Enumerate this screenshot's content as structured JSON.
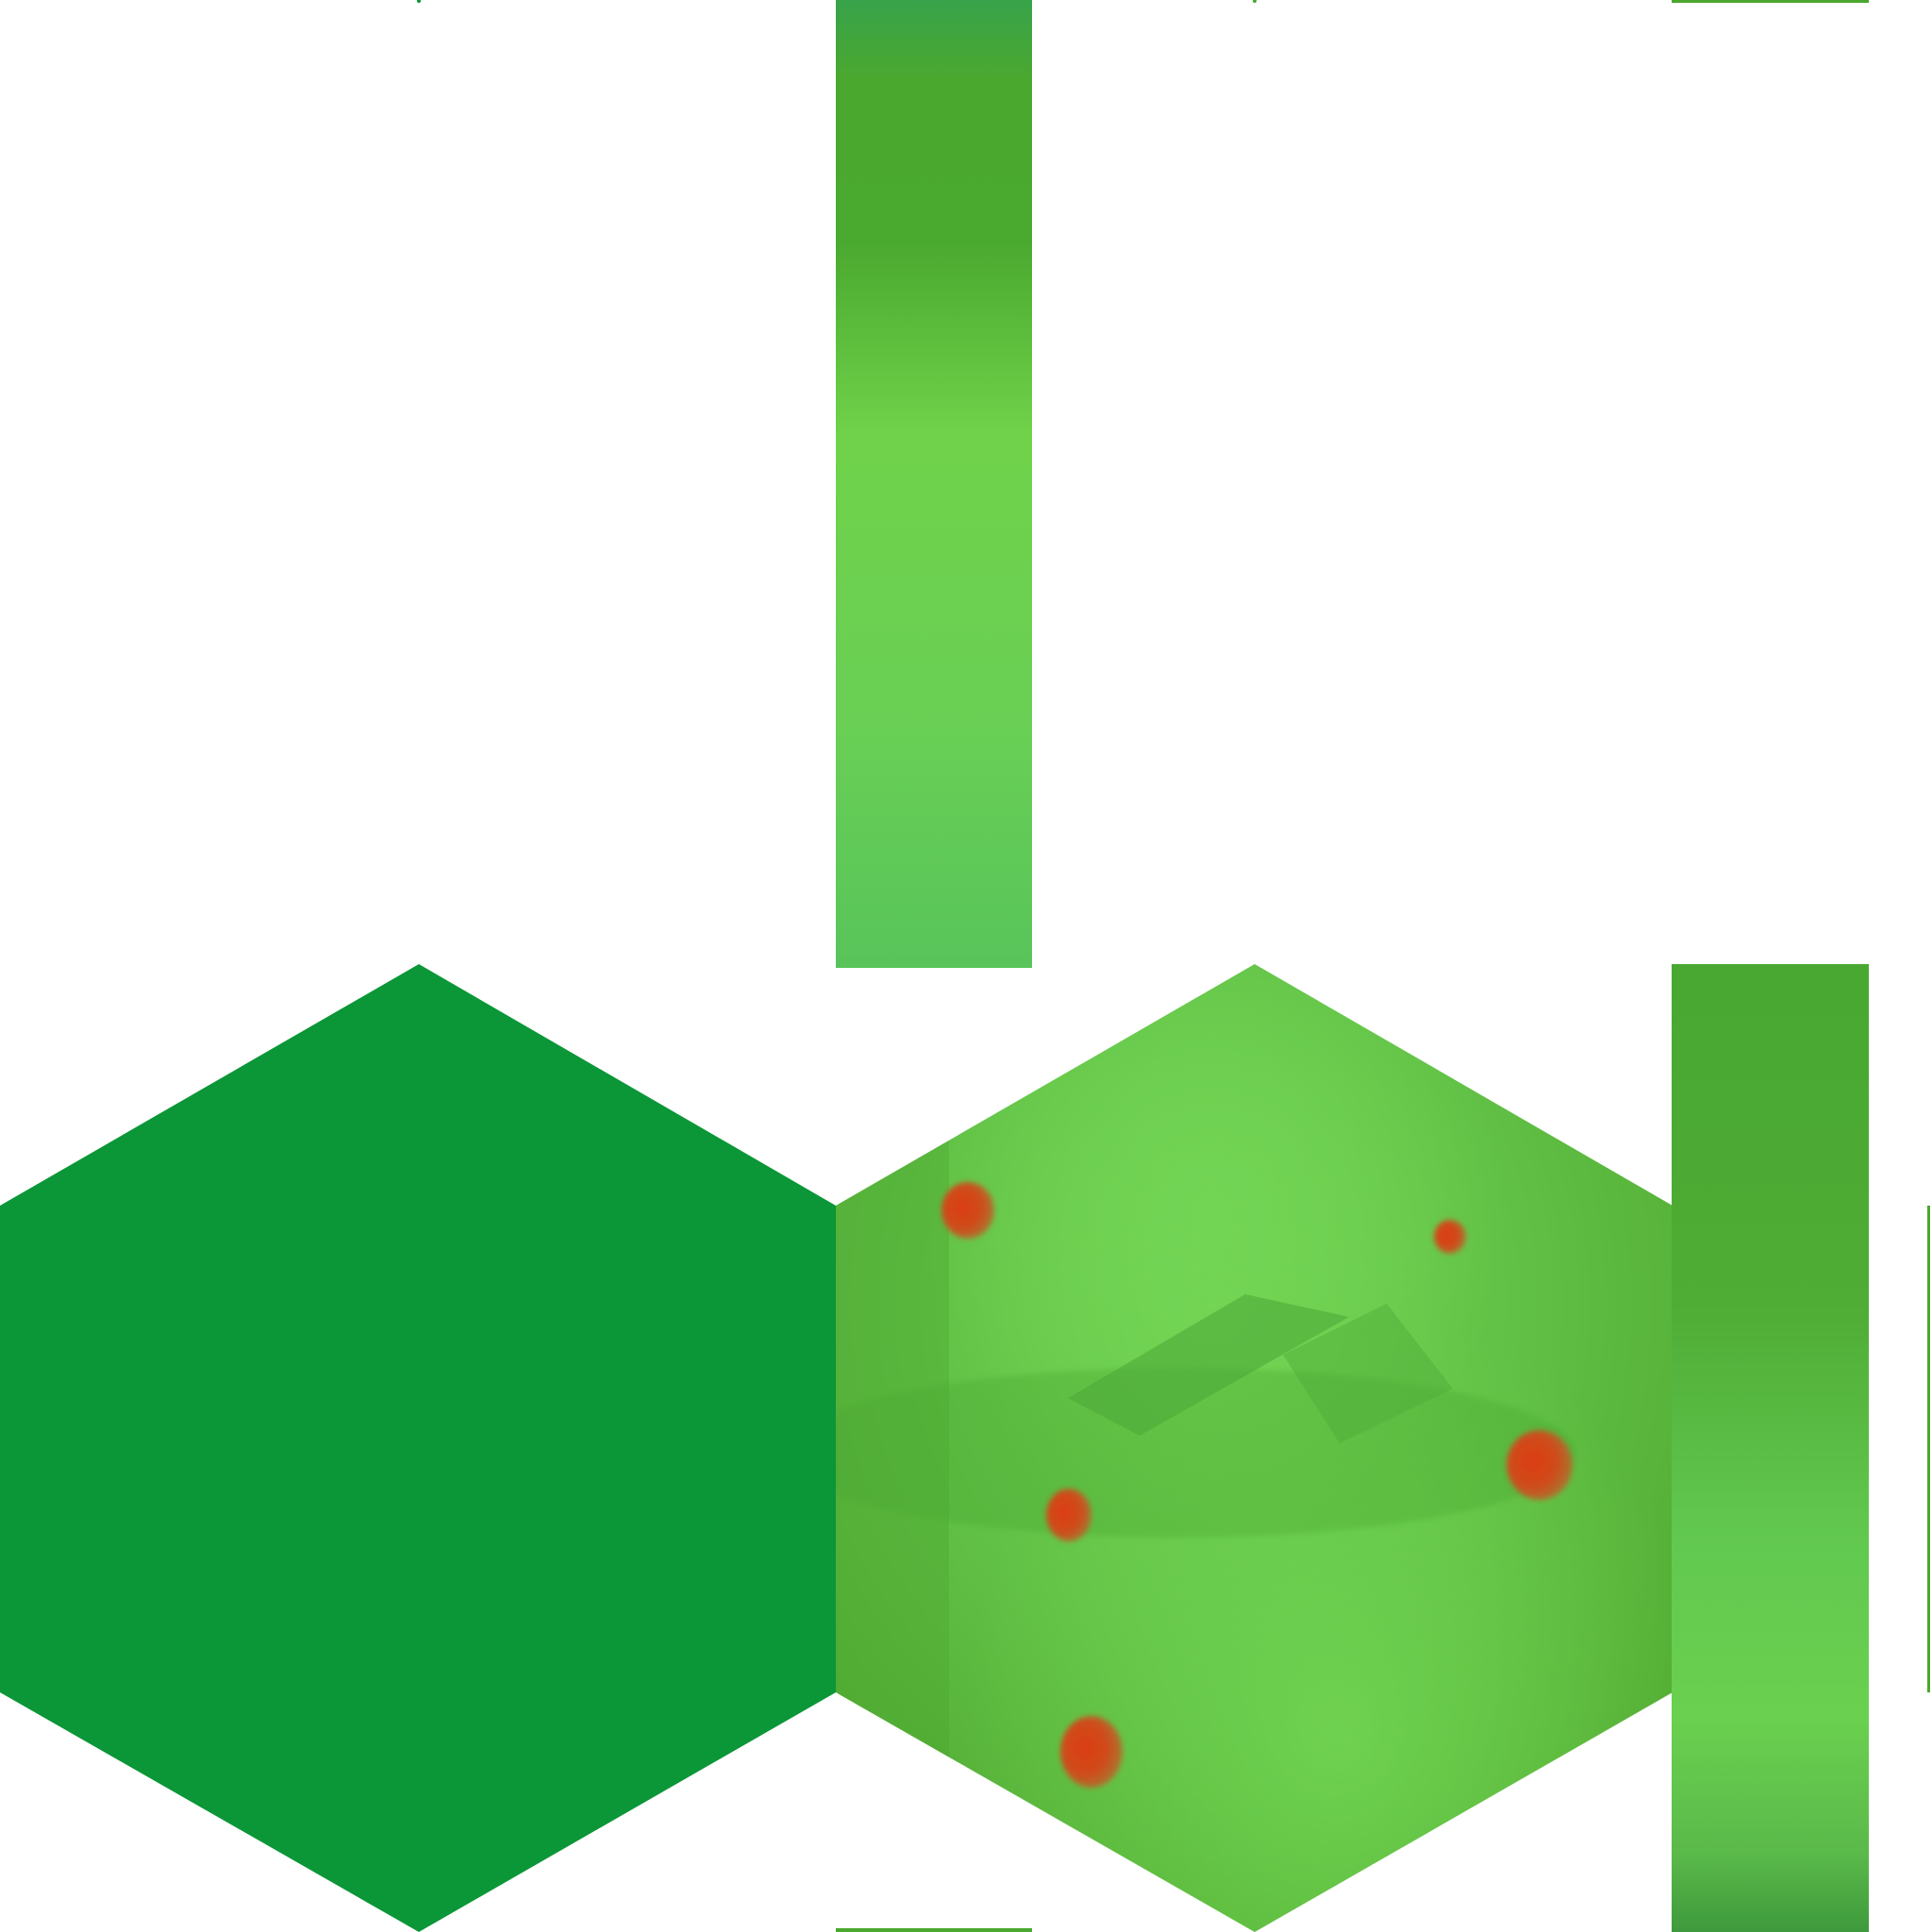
{
  "texture": {
    "background": "#ffffff",
    "solid_green": "#0b9637",
    "grass_light": "#6fd24e",
    "grass_mid": "#62c14a",
    "grass_dark": "#4aa82f",
    "flower_red": "#d9481a",
    "flower_rim": "#b8652a",
    "tiles": [
      {
        "name": "hex-tile-solid",
        "style": "flat"
      },
      {
        "name": "hex-tile-grass",
        "style": "textured",
        "flowers": 5
      },
      {
        "name": "pillar-tile-top",
        "style": "textured"
      },
      {
        "name": "pillar-tile-right",
        "style": "textured"
      }
    ]
  }
}
